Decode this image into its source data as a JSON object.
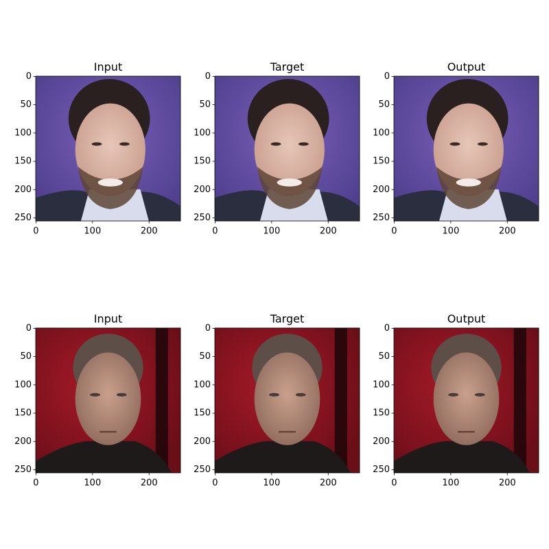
{
  "chart_data": [
    {
      "type": "image",
      "title": "Input",
      "xlim": [
        -0.5,
        255.5
      ],
      "ylim": [
        255.5,
        -0.5
      ],
      "xticks": [
        0,
        100,
        200
      ],
      "yticks": [
        0,
        50,
        100,
        150,
        200,
        250
      ]
    },
    {
      "type": "image",
      "title": "Target",
      "xlim": [
        -0.5,
        255.5
      ],
      "ylim": [
        255.5,
        -0.5
      ],
      "xticks": [
        0,
        100,
        200
      ],
      "yticks": [
        0,
        50,
        100,
        150,
        200,
        250
      ]
    },
    {
      "type": "image",
      "title": "Output",
      "xlim": [
        -0.5,
        255.5
      ],
      "ylim": [
        255.5,
        -0.5
      ],
      "xticks": [
        0,
        100,
        200
      ],
      "yticks": [
        0,
        50,
        100,
        150,
        200,
        250
      ]
    },
    {
      "type": "image",
      "title": "Input",
      "xlim": [
        -0.5,
        255.5
      ],
      "ylim": [
        255.5,
        -0.5
      ],
      "xticks": [
        0,
        100,
        200
      ],
      "yticks": [
        0,
        50,
        100,
        150,
        200,
        250
      ]
    },
    {
      "type": "image",
      "title": "Target",
      "xlim": [
        -0.5,
        255.5
      ],
      "ylim": [
        255.5,
        -0.5
      ],
      "xticks": [
        0,
        100,
        200
      ],
      "yticks": [
        0,
        50,
        100,
        150,
        200,
        250
      ]
    },
    {
      "type": "image",
      "title": "Output",
      "xlim": [
        -0.5,
        255.5
      ],
      "ylim": [
        255.5,
        -0.5
      ],
      "xticks": [
        0,
        100,
        200
      ],
      "yticks": [
        0,
        50,
        100,
        150,
        200,
        250
      ]
    }
  ]
}
